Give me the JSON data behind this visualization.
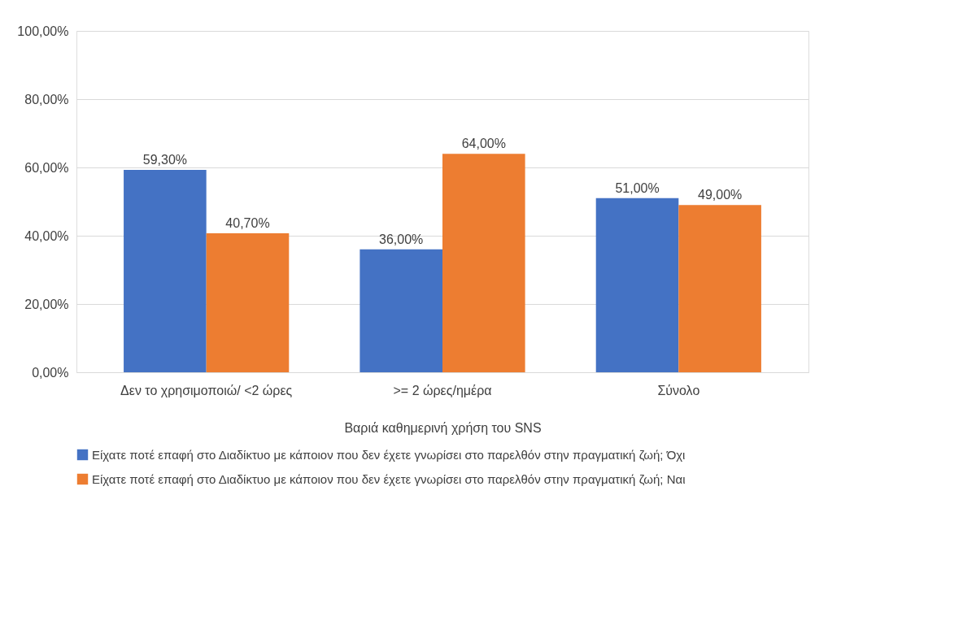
{
  "chart_data": {
    "type": "bar",
    "xlabel": "Βαριά καθημερινή χρήση του SNS",
    "categories": [
      "Δεν το χρησιμοποιώ/ <2 ώρες",
      ">= 2 ώρες/ημέρα",
      "Σύνολο"
    ],
    "series": [
      {
        "name": "Είχατε ποτέ επαφή στο Διαδίκτυο με κάποιον που δεν έχετε γνωρίσει στο παρελθόν στην πραγματική ζωή; Όχι",
        "color": "#4472c4",
        "values": [
          59.3,
          36.0,
          51.0
        ],
        "value_labels": [
          "59,30%",
          "36,00%",
          "51,00%"
        ]
      },
      {
        "name": "Είχατε ποτέ επαφή στο Διαδίκτυο με κάποιον που δεν έχετε γνωρίσει στο παρελθόν στην πραγματική ζωή; Ναι",
        "color": "#ed7d31",
        "values": [
          40.7,
          64.0,
          49.0
        ],
        "value_labels": [
          "40,70%",
          "64,00%",
          "49,00%"
        ]
      }
    ],
    "ylim": [
      0,
      100
    ],
    "yticks": [
      {
        "value": 0,
        "label": "0,00%"
      },
      {
        "value": 20,
        "label": "20,00%"
      },
      {
        "value": 40,
        "label": "40,00%"
      },
      {
        "value": 60,
        "label": "60,00%"
      },
      {
        "value": 80,
        "label": "80,00%"
      },
      {
        "value": 100,
        "label": "100,00%"
      }
    ],
    "grid": "y",
    "legend": "bottom"
  }
}
